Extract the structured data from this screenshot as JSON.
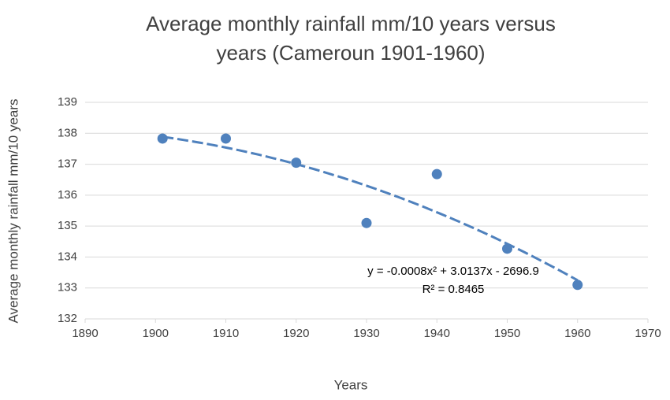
{
  "chart_data": {
    "type": "scatter",
    "title": [
      "Average monthly rainfall mm/10 years versus",
      "years (Cameroun 1901-1960)"
    ],
    "x_label": "Years",
    "y_label": "Average monthly rainfall mm/10 years",
    "series": [
      {
        "name": "Average monthly rainfall",
        "color": "#4f81bd",
        "x": [
          1901,
          1910,
          1920,
          1930,
          1940,
          1950,
          1960
        ],
        "values": [
          137.83,
          137.83,
          137.05,
          135.1,
          136.68,
          134.27,
          133.1
        ]
      }
    ],
    "trendline": {
      "type": "polynomial",
      "order": 2,
      "color": "#4f81bd",
      "equation": "y = -0.0008x² + 3.0137x - 2696.9",
      "r_squared": "R² = 0.8465"
    },
    "xlim": [
      1890,
      1970
    ],
    "xticks": [
      1890,
      1900,
      1910,
      1920,
      1930,
      1940,
      1950,
      1960,
      1970
    ],
    "ylim": [
      132,
      139
    ],
    "yticks": [
      132,
      133,
      134,
      135,
      136,
      137,
      138,
      139
    ],
    "grid": true
  }
}
